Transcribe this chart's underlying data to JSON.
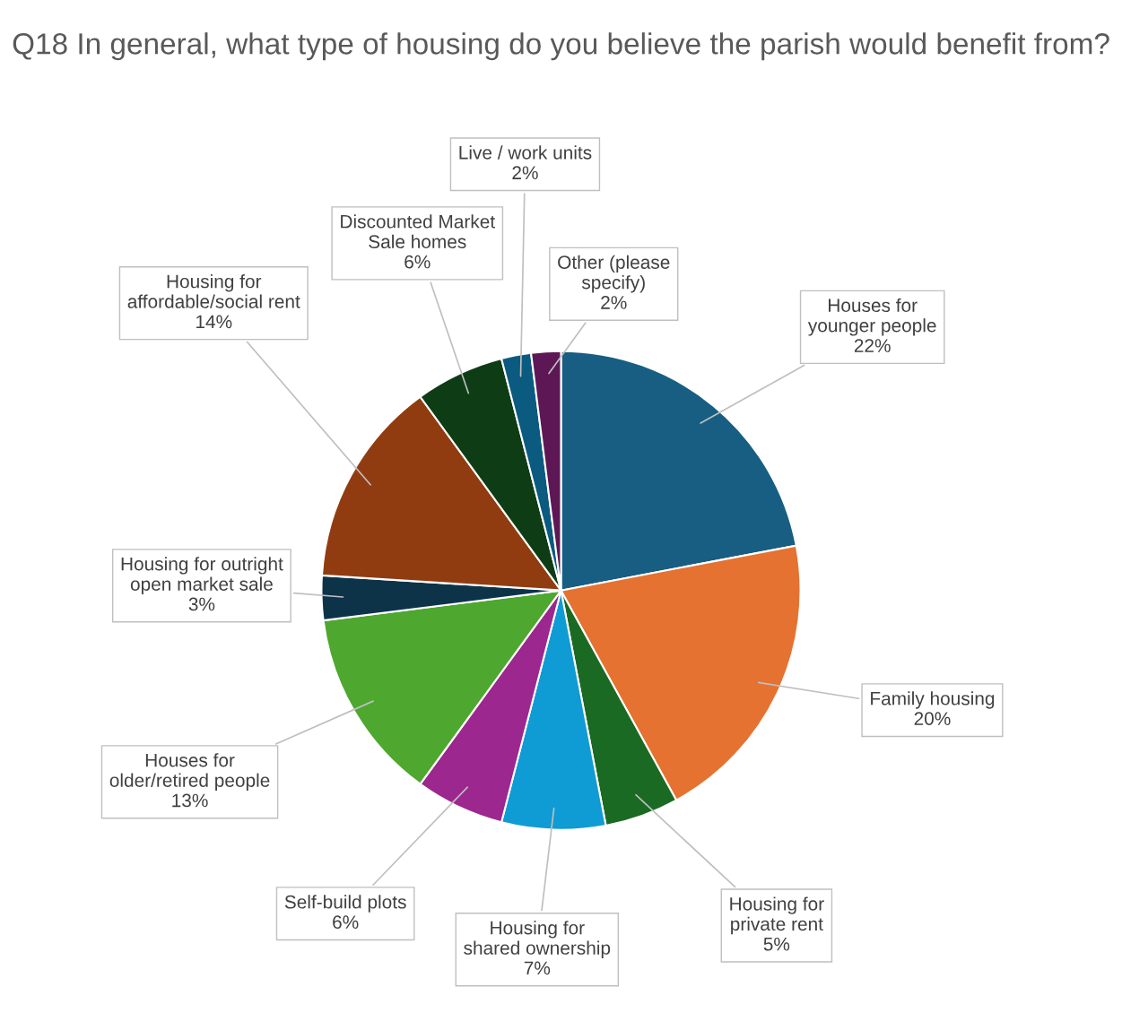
{
  "chart_data": {
    "type": "pie",
    "title": "Q18 In general, what type of housing do you believe the parish would benefit from?",
    "categories": [
      "Houses for younger people",
      "Family housing",
      "Housing for private rent",
      "Housing for shared ownership",
      "Self-build plots",
      "Houses for older/retired people",
      "Housing for outright open market sale",
      "Housing for affordable/social rent",
      "Discounted Market Sale homes",
      "Live / work units",
      "Other (please specify)"
    ],
    "values": [
      22,
      20,
      5,
      7,
      6,
      13,
      3,
      14,
      6,
      2,
      2
    ],
    "colors": [
      "#175e82",
      "#e57231",
      "#1b6a23",
      "#0f9bd4",
      "#9c278f",
      "#4ea72e",
      "#0d3349",
      "#913c10",
      "#0e3d15",
      "#0b5a80",
      "#5c1754"
    ],
    "value_labels": [
      "22%",
      "20%",
      "5%",
      "7%",
      "6%",
      "13%",
      "3%",
      "14%",
      "6%",
      "2%",
      "2%"
    ]
  }
}
